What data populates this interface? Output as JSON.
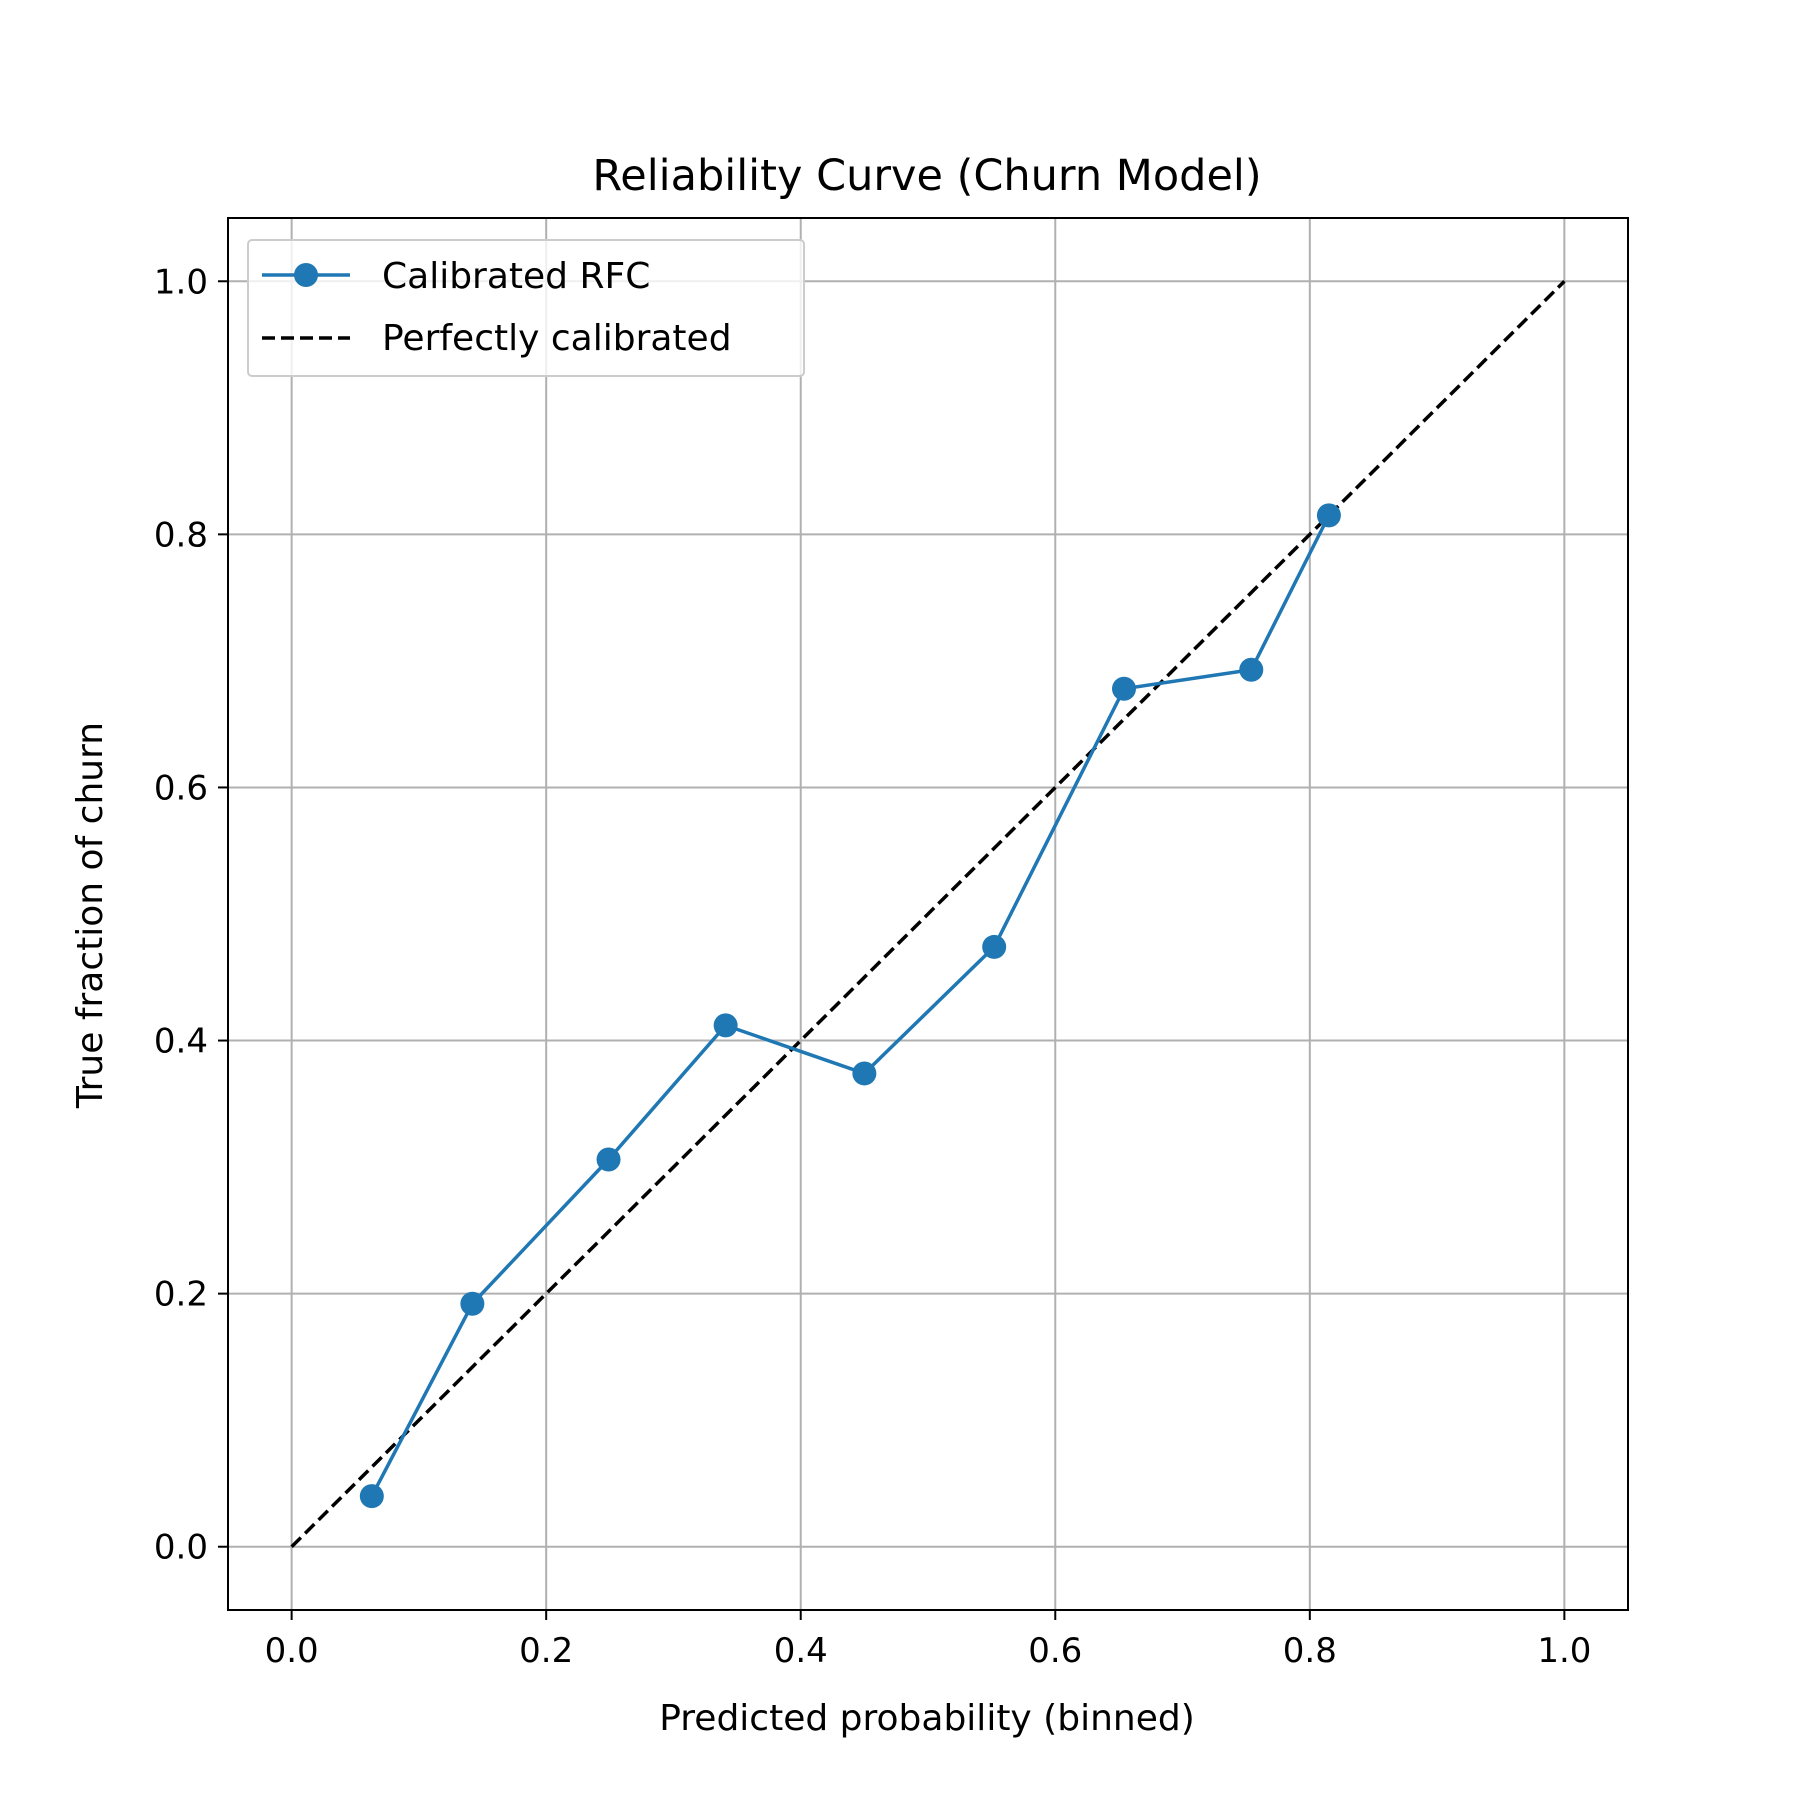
{
  "chart_data": {
    "type": "line",
    "title": "Reliability Curve (Churn Model)",
    "xlabel": "Predicted probability (binned)",
    "ylabel": "True fraction of churn",
    "xlim": [
      -0.05,
      1.05
    ],
    "ylim": [
      -0.05,
      1.05
    ],
    "xticks": [
      "0.0",
      "0.2",
      "0.4",
      "0.6",
      "0.8",
      "1.0"
    ],
    "yticks": [
      "0.0",
      "0.2",
      "0.4",
      "0.6",
      "0.8",
      "1.0"
    ],
    "grid": true,
    "legend_position": "top-left",
    "series": [
      {
        "name": "Calibrated RFC",
        "style": "solid-with-circle-markers",
        "color": "#1f77b4",
        "x": [
          0.063,
          0.142,
          0.249,
          0.341,
          0.45,
          0.552,
          0.654,
          0.754,
          0.815
        ],
        "y": [
          0.04,
          0.192,
          0.306,
          0.412,
          0.374,
          0.474,
          0.678,
          0.693,
          0.815
        ]
      },
      {
        "name": "Perfectly calibrated",
        "style": "dashed",
        "color": "#000000",
        "x": [
          0,
          1
        ],
        "y": [
          0,
          1
        ]
      }
    ]
  }
}
